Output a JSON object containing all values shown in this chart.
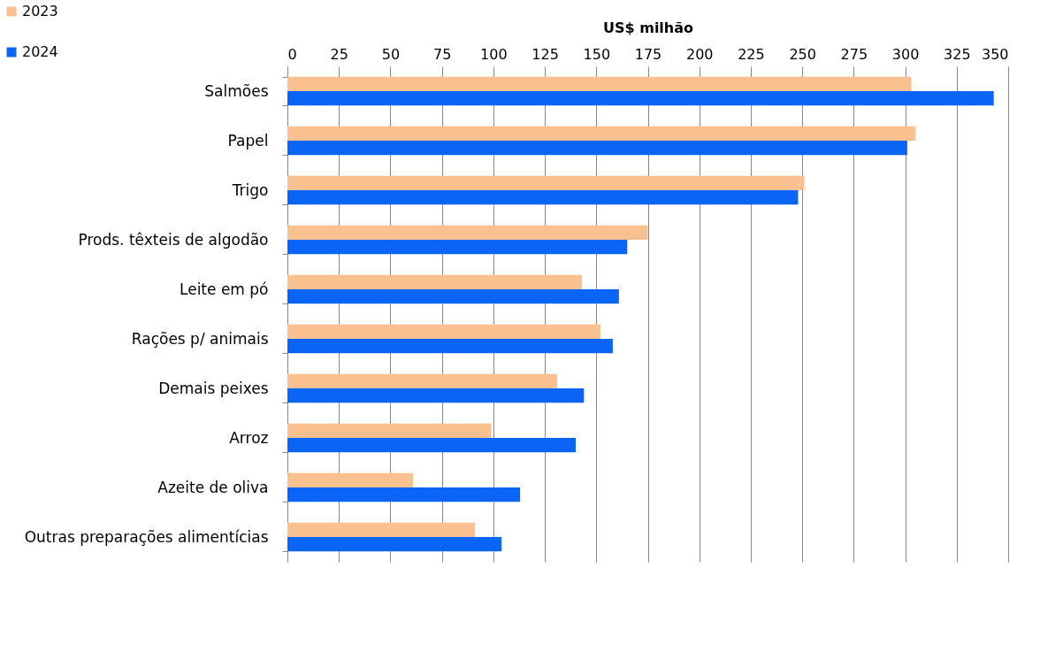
{
  "chart_data": {
    "type": "bar",
    "orientation": "horizontal",
    "xlabel": "US$ milhão",
    "categories": [
      "Salmões",
      "Papel",
      "Trigo",
      "Prods. têxteis de algodão",
      "Leite em pó",
      "Rações p/ animais",
      "Demais peixes",
      "Arroz",
      "Azeite de oliva",
      "Outras preparações alimentícias"
    ],
    "series": [
      {
        "name": "2023",
        "color": "#fac090",
        "values": [
          303,
          305,
          251,
          175,
          143,
          152,
          131,
          99,
          61,
          91
        ]
      },
      {
        "name": "2024",
        "color": "#0a64f5",
        "values": [
          343,
          301,
          248,
          165,
          161,
          158,
          144,
          140,
          113,
          104
        ]
      }
    ],
    "xlim": [
      0,
      350
    ],
    "xticks": [
      0,
      25,
      50,
      75,
      100,
      125,
      150,
      175,
      200,
      225,
      250,
      275,
      300,
      325,
      350
    ],
    "grid": "x",
    "legend": "top left"
  }
}
